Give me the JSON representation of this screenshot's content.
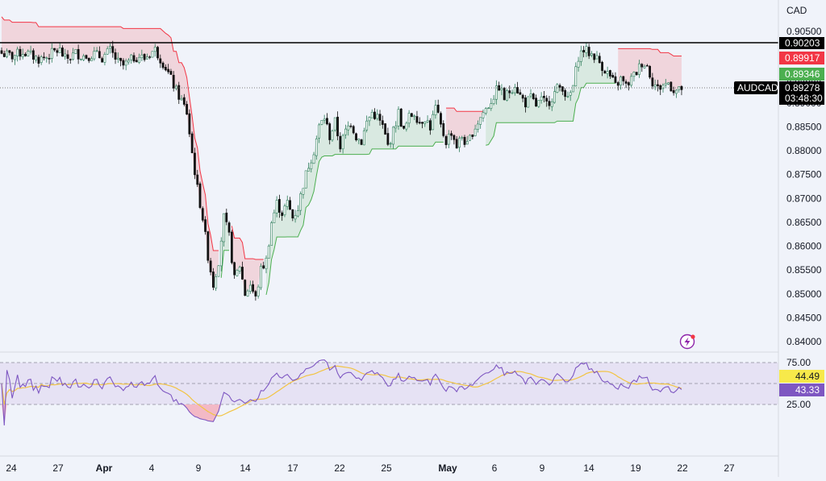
{
  "currency": "CAD",
  "symbol": "AUDCAD",
  "chart_data": {
    "type": "candlestick",
    "price_ticks": [
      "0.90500",
      "0.90000",
      "0.89500",
      "0.89000",
      "0.88500",
      "0.88000",
      "0.87500",
      "0.87000",
      "0.86500",
      "0.86000",
      "0.85500",
      "0.85000",
      "0.84500",
      "0.84000"
    ],
    "rsi_ticks": [
      "75.00",
      "25.00"
    ],
    "x_ticks": [
      "24",
      "27",
      "Apr",
      "4",
      "9",
      "14",
      "17",
      "22",
      "25",
      "May",
      "6",
      "9",
      "14",
      "19",
      "22",
      "27"
    ],
    "horizontal_line": {
      "value": 0.90203,
      "label": "0.90203"
    },
    "last_price": {
      "value": 0.89278,
      "label": "0.89278",
      "countdown": "03:48:30"
    },
    "supertrend_upper_label": "0.89917",
    "supertrend_lower_label": "0.89346",
    "rsi_value_labels": {
      "ma": "44.49",
      "rsi": "43.33"
    },
    "close_path": [
      [
        0,
        0.9004
      ],
      [
        4,
        0.8998
      ],
      [
        8,
        0.9007
      ],
      [
        11,
        0.9
      ],
      [
        14,
        0.8992
      ],
      [
        17,
        0.8996
      ],
      [
        20,
        0.9008
      ],
      [
        22,
        0.901
      ],
      [
        24,
        0.8992
      ],
      [
        26,
        0.8996
      ],
      [
        28,
        0.9005
      ],
      [
        30,
        0.9
      ],
      [
        32,
        0.8998
      ],
      [
        35,
        0.9003
      ],
      [
        38,
        0.8995
      ],
      [
        41,
        0.901
      ],
      [
        44,
        0.8985
      ],
      [
        46,
        0.8978
      ],
      [
        48,
        0.8985
      ],
      [
        50,
        0.8995
      ],
      [
        52,
        0.8998
      ],
      [
        54,
        0.8993
      ],
      [
        56,
        0.9004
      ],
      [
        58,
        0.9012
      ],
      [
        60,
        0.8994
      ],
      [
        62,
        0.8975
      ],
      [
        64,
        0.895
      ],
      [
        66,
        0.8925
      ],
      [
        68,
        0.8905
      ],
      [
        70,
        0.888
      ],
      [
        72,
        0.8795
      ],
      [
        74,
        0.872
      ],
      [
        76,
        0.866
      ],
      [
        78,
        0.858
      ],
      [
        80,
        0.852
      ],
      [
        82,
        0.857
      ],
      [
        84,
        0.866
      ],
      [
        86,
        0.862
      ],
      [
        88,
        0.853
      ],
      [
        90,
        0.856
      ],
      [
        92,
        0.85
      ],
      [
        94,
        0.852
      ],
      [
        96,
        0.849
      ],
      [
        98,
        0.855
      ],
      [
        100,
        0.857
      ],
      [
        102,
        0.865
      ],
      [
        104,
        0.869
      ],
      [
        106,
        0.867
      ],
      [
        108,
        0.869
      ],
      [
        110,
        0.866
      ],
      [
        112,
        0.868
      ],
      [
        114,
        0.873
      ],
      [
        116,
        0.877
      ],
      [
        118,
        0.88
      ],
      [
        120,
        0.885
      ],
      [
        122,
        0.887
      ],
      [
        124,
        0.883
      ],
      [
        126,
        0.886
      ],
      [
        128,
        0.881
      ],
      [
        130,
        0.884
      ],
      [
        132,
        0.886
      ],
      [
        134,
        0.883
      ],
      [
        136,
        0.882
      ],
      [
        138,
        0.886
      ],
      [
        140,
        0.888
      ],
      [
        142,
        0.887
      ],
      [
        144,
        0.885
      ],
      [
        146,
        0.881
      ],
      [
        148,
        0.884
      ],
      [
        150,
        0.888
      ],
      [
        152,
        0.884
      ],
      [
        154,
        0.887
      ],
      [
        156,
        0.888
      ],
      [
        158,
        0.886
      ],
      [
        160,
        0.887
      ],
      [
        162,
        0.885
      ],
      [
        164,
        0.889
      ],
      [
        166,
        0.885
      ],
      [
        168,
        0.882
      ],
      [
        170,
        0.884
      ],
      [
        172,
        0.881
      ],
      [
        174,
        0.883
      ],
      [
        176,
        0.881
      ],
      [
        178,
        0.884
      ],
      [
        180,
        0.886
      ],
      [
        182,
        0.888
      ],
      [
        184,
        0.8895
      ],
      [
        186,
        0.8915
      ],
      [
        188,
        0.8935
      ],
      [
        190,
        0.891
      ],
      [
        192,
        0.8925
      ],
      [
        194,
        0.894
      ],
      [
        196,
        0.8915
      ],
      [
        198,
        0.89
      ],
      [
        200,
        0.891
      ],
      [
        202,
        0.8895
      ],
      [
        204,
        0.8905
      ],
      [
        206,
        0.8898
      ],
      [
        208,
        0.8912
      ],
      [
        210,
        0.893
      ],
      [
        212,
        0.8935
      ],
      [
        214,
        0.8905
      ],
      [
        216,
        0.8935
      ],
      [
        218,
        0.8998
      ],
      [
        220,
        0.9012
      ],
      [
        222,
        0.9005
      ],
      [
        224,
        0.9
      ],
      [
        226,
        0.8985
      ],
      [
        228,
        0.897
      ],
      [
        230,
        0.8955
      ],
      [
        232,
        0.8935
      ],
      [
        234,
        0.895
      ],
      [
        236,
        0.8935
      ],
      [
        238,
        0.895
      ],
      [
        240,
        0.8965
      ],
      [
        242,
        0.8985
      ],
      [
        244,
        0.8978
      ],
      [
        246,
        0.8945
      ],
      [
        248,
        0.893
      ],
      [
        250,
        0.8938
      ],
      [
        252,
        0.8942
      ],
      [
        254,
        0.8928
      ],
      [
        256,
        0.8925
      ],
      [
        257,
        0.89278
      ]
    ]
  }
}
